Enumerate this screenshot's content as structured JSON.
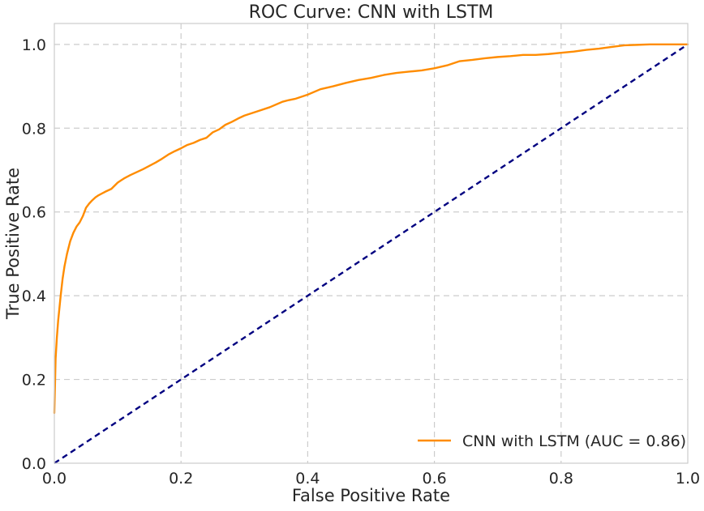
{
  "chart_data": {
    "type": "line",
    "title": "ROC Curve: CNN with LSTM",
    "xlabel": "False Positive Rate",
    "ylabel": "True Positive Rate",
    "xlim": [
      0.0,
      1.0
    ],
    "ylim": [
      0.0,
      1.05
    ],
    "xticks": [
      0.0,
      0.2,
      0.4,
      0.6,
      0.8,
      1.0
    ],
    "xtick_labels": [
      "0.0",
      "0.2",
      "0.4",
      "0.6",
      "0.8",
      "1.0"
    ],
    "yticks": [
      0.0,
      0.2,
      0.4,
      0.6,
      0.8,
      1.0
    ],
    "ytick_labels": [
      "0.0",
      "0.2",
      "0.4",
      "0.6",
      "0.8",
      "1.0"
    ],
    "grid": true,
    "legend_position": "lower-right",
    "series": [
      {
        "name": "CNN with LSTM (AUC = 0.86)",
        "color": "#ff8c00",
        "style": "solid",
        "x": [
          0.0,
          0.002,
          0.004,
          0.006,
          0.008,
          0.01,
          0.013,
          0.016,
          0.02,
          0.025,
          0.03,
          0.035,
          0.04,
          0.045,
          0.05,
          0.055,
          0.06,
          0.065,
          0.07,
          0.08,
          0.09,
          0.1,
          0.105,
          0.11,
          0.12,
          0.13,
          0.14,
          0.15,
          0.16,
          0.17,
          0.18,
          0.19,
          0.2,
          0.21,
          0.22,
          0.23,
          0.24,
          0.25,
          0.26,
          0.27,
          0.28,
          0.29,
          0.3,
          0.32,
          0.34,
          0.36,
          0.37,
          0.38,
          0.4,
          0.42,
          0.44,
          0.46,
          0.48,
          0.5,
          0.52,
          0.54,
          0.56,
          0.58,
          0.6,
          0.62,
          0.64,
          0.66,
          0.68,
          0.7,
          0.72,
          0.74,
          0.76,
          0.78,
          0.8,
          0.82,
          0.84,
          0.86,
          0.88,
          0.9,
          0.92,
          0.94,
          0.96,
          0.98,
          1.0
        ],
        "y": [
          0.12,
          0.25,
          0.3,
          0.34,
          0.37,
          0.4,
          0.44,
          0.47,
          0.5,
          0.53,
          0.55,
          0.565,
          0.575,
          0.59,
          0.61,
          0.62,
          0.628,
          0.635,
          0.64,
          0.648,
          0.655,
          0.67,
          0.675,
          0.68,
          0.688,
          0.695,
          0.702,
          0.71,
          0.718,
          0.727,
          0.737,
          0.745,
          0.752,
          0.76,
          0.765,
          0.772,
          0.777,
          0.79,
          0.797,
          0.808,
          0.815,
          0.823,
          0.83,
          0.84,
          0.85,
          0.863,
          0.867,
          0.87,
          0.88,
          0.893,
          0.9,
          0.908,
          0.915,
          0.92,
          0.927,
          0.932,
          0.935,
          0.938,
          0.943,
          0.95,
          0.96,
          0.963,
          0.967,
          0.97,
          0.972,
          0.975,
          0.975,
          0.977,
          0.98,
          0.983,
          0.987,
          0.99,
          0.994,
          0.998,
          0.999,
          1.0,
          1.0,
          1.0,
          1.0
        ]
      },
      {
        "name": "",
        "color": "#000080",
        "style": "dashed",
        "x": [
          0.0,
          1.0
        ],
        "y": [
          0.0,
          1.0
        ]
      }
    ]
  }
}
